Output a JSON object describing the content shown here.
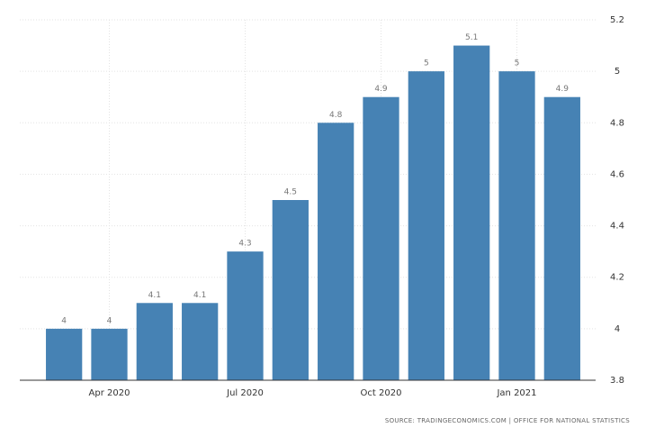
{
  "chart_data": {
    "type": "bar",
    "categories": [
      null,
      "Apr 2020",
      null,
      null,
      "Jul 2020",
      null,
      null,
      "Oct 2020",
      null,
      null,
      "Jan 2021",
      null
    ],
    "values": [
      4,
      4,
      4.1,
      4.1,
      4.3,
      4.5,
      4.8,
      4.9,
      5,
      5.1,
      5,
      4.9
    ],
    "color": "#4682b4",
    "ylim": [
      3.8,
      5.2
    ],
    "yticks": [
      3.8,
      4,
      4.2,
      4.4,
      4.6,
      4.8,
      5,
      5.2
    ],
    "grid": true,
    "source": "SOURCE: TRADINGECONOMICS.COM | OFFICE FOR NATIONAL STATISTICS"
  }
}
